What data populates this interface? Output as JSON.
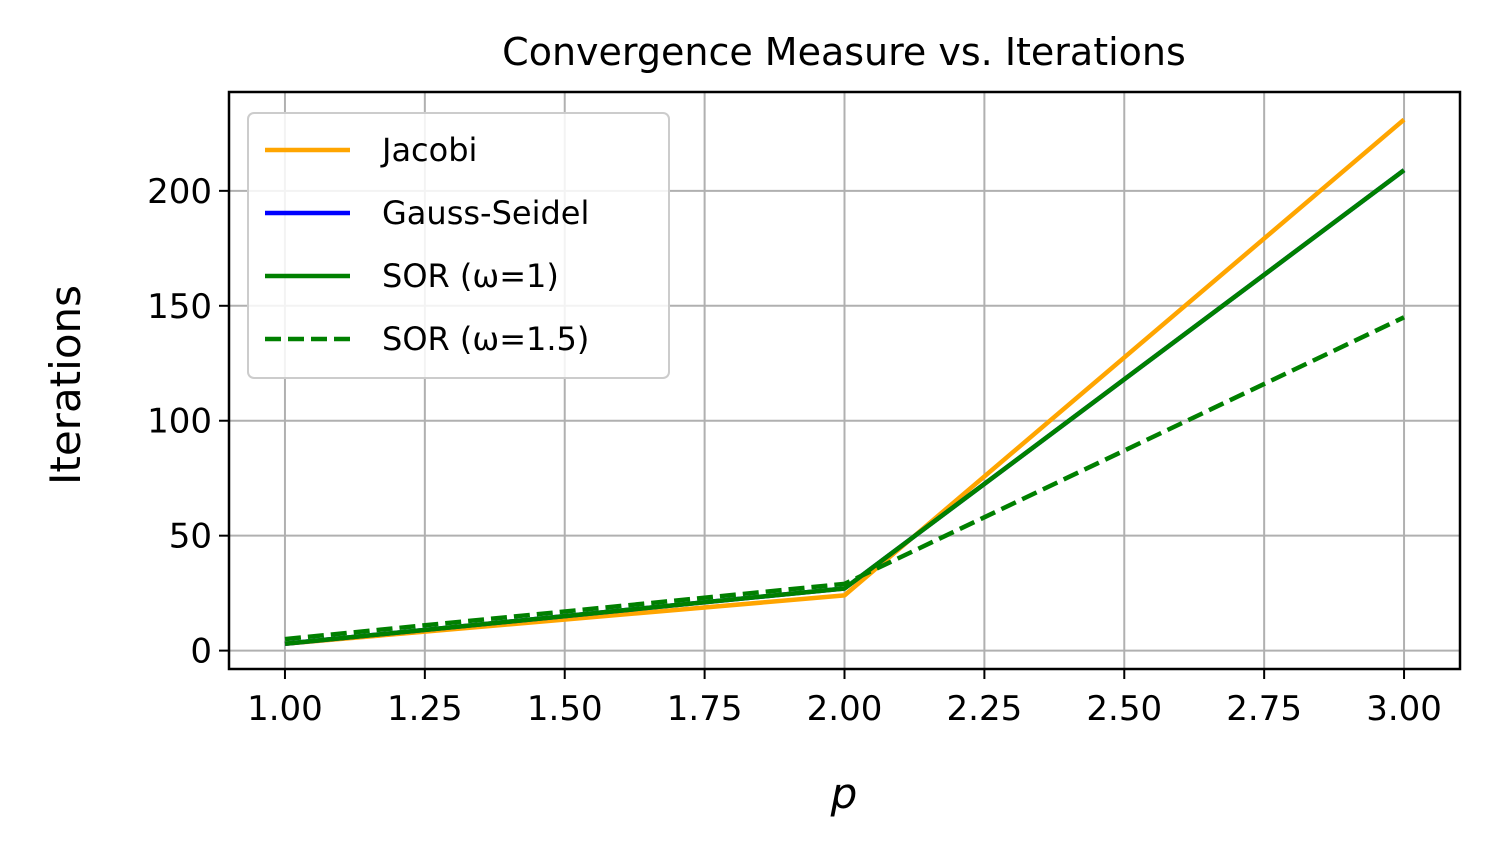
{
  "chart_data": {
    "type": "line",
    "title": "Convergence Measure vs. Iterations",
    "xlabel": "p",
    "ylabel": "Iterations",
    "xlim": [
      0.9,
      3.1
    ],
    "ylim": [
      -8,
      243
    ],
    "xticks": [
      "1.00",
      "1.25",
      "1.50",
      "1.75",
      "2.00",
      "2.25",
      "2.50",
      "2.75",
      "3.00"
    ],
    "yticks": [
      "0",
      "50",
      "100",
      "150",
      "200"
    ],
    "grid": true,
    "legend_position": "upper-left",
    "x": [
      1.0,
      2.0,
      3.0
    ],
    "series": [
      {
        "name": "Jacobi",
        "values": [
          3,
          24,
          231
        ],
        "color": "#ffa500",
        "dash": "solid"
      },
      {
        "name": "Gauss-Seidel",
        "values": [
          3,
          27,
          209
        ],
        "color": "#0000ff",
        "dash": "solid"
      },
      {
        "name": "SOR (ω=1)",
        "values": [
          3,
          27,
          209
        ],
        "color": "#008000",
        "dash": "solid"
      },
      {
        "name": "SOR (ω=1.5)",
        "values": [
          5,
          29,
          145
        ],
        "color": "#008000",
        "dash": "dashed"
      }
    ]
  }
}
